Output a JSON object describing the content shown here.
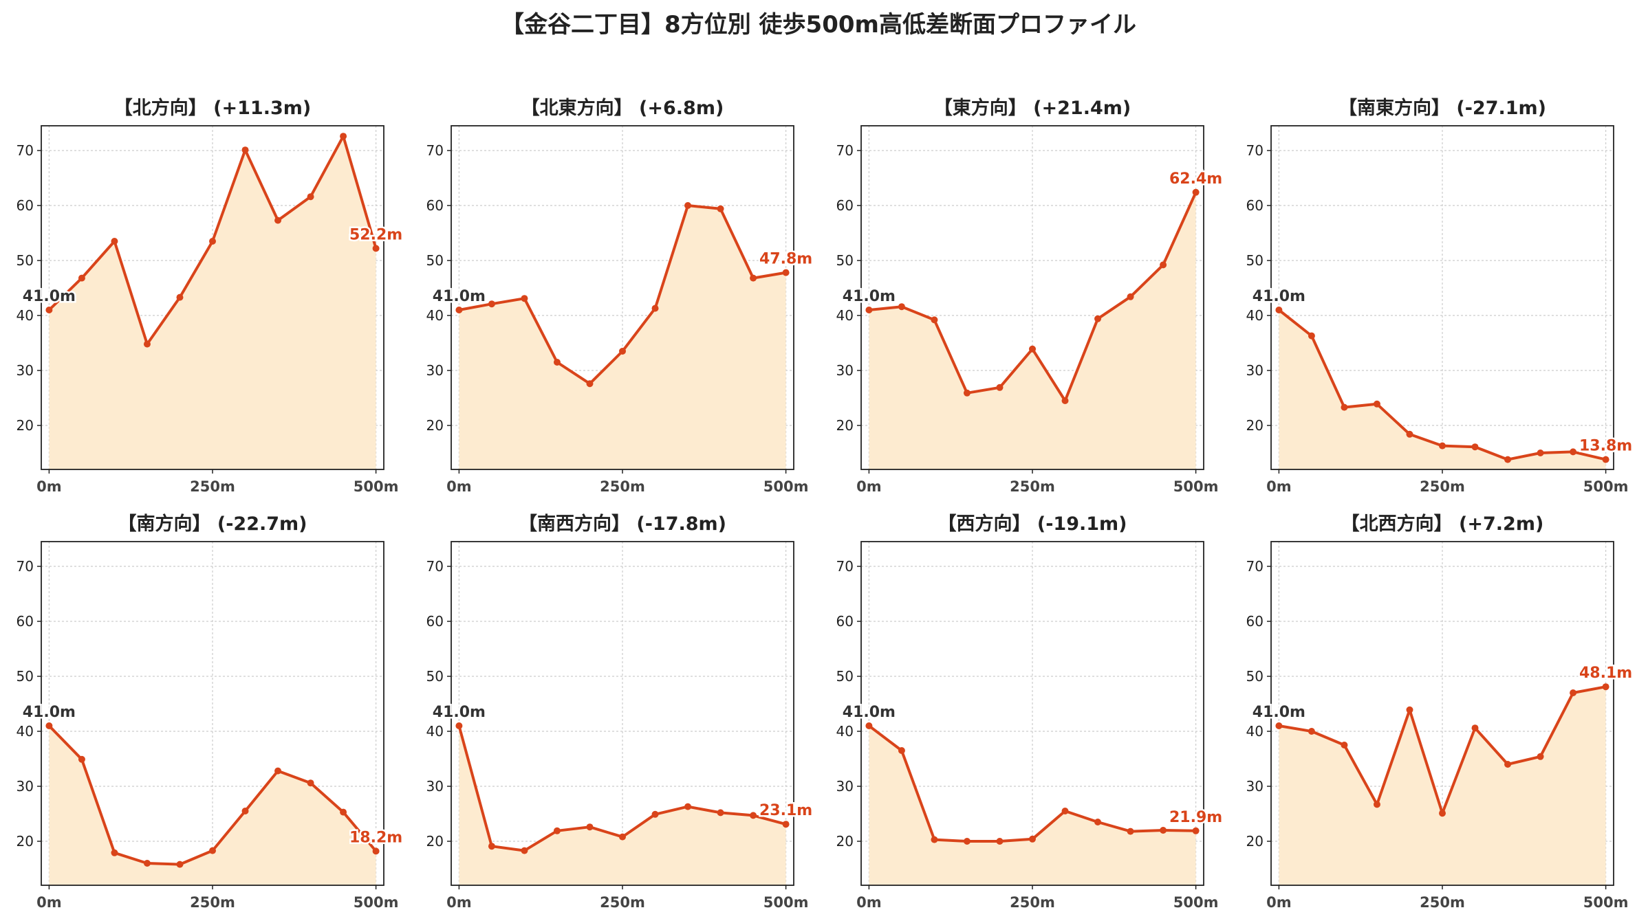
{
  "figure": {
    "title": "【金谷二丁目】8方位別 徒歩500m高低差断面プロファイル"
  },
  "colors": {
    "line": "#d9441a",
    "fill": "#fdebd0",
    "start_label": "#333333",
    "end_label": "#d9441a",
    "grid": "#cccccc",
    "frame": "#222222"
  },
  "chart_data": [
    {
      "type": "area",
      "title": "【北方向】 (+11.3m)",
      "x": [
        0,
        50,
        100,
        150,
        200,
        250,
        300,
        350,
        400,
        450,
        500
      ],
      "values": [
        41.0,
        46.8,
        53.5,
        34.8,
        43.3,
        53.5,
        70.1,
        57.3,
        61.6,
        72.6,
        52.2
      ],
      "xticks": [
        "0m",
        "250m",
        "500m"
      ],
      "yticks": [
        20,
        30,
        40,
        50,
        60,
        70
      ],
      "ylim": [
        12,
        74.5
      ],
      "xlim": [
        -12,
        512
      ],
      "start_label": "41.0m",
      "end_label": "52.2m",
      "grid": true
    },
    {
      "type": "area",
      "title": "【北東方向】 (+6.8m)",
      "x": [
        0,
        50,
        100,
        150,
        200,
        250,
        300,
        350,
        400,
        450,
        500
      ],
      "values": [
        41.0,
        42.1,
        43.1,
        31.5,
        27.6,
        33.5,
        41.3,
        60.0,
        59.4,
        46.8,
        47.8
      ],
      "xticks": [
        "0m",
        "250m",
        "500m"
      ],
      "yticks": [
        20,
        30,
        40,
        50,
        60,
        70
      ],
      "ylim": [
        12,
        74.5
      ],
      "xlim": [
        -12,
        512
      ],
      "start_label": "41.0m",
      "end_label": "47.8m",
      "grid": true
    },
    {
      "type": "area",
      "title": "【東方向】 (+21.4m)",
      "x": [
        0,
        50,
        100,
        150,
        200,
        250,
        300,
        350,
        400,
        450,
        500
      ],
      "values": [
        41.0,
        41.6,
        39.2,
        25.9,
        26.9,
        33.9,
        24.5,
        39.4,
        43.4,
        49.2,
        62.4
      ],
      "xticks": [
        "0m",
        "250m",
        "500m"
      ],
      "yticks": [
        20,
        30,
        40,
        50,
        60,
        70
      ],
      "ylim": [
        12,
        74.5
      ],
      "xlim": [
        -12,
        512
      ],
      "start_label": "41.0m",
      "end_label": "62.4m",
      "grid": true
    },
    {
      "type": "area",
      "title": "【南東方向】 (-27.1m)",
      "x": [
        0,
        50,
        100,
        150,
        200,
        250,
        300,
        350,
        400,
        450,
        500
      ],
      "values": [
        41.0,
        36.3,
        23.3,
        23.9,
        18.4,
        16.3,
        16.1,
        13.8,
        15.0,
        15.2,
        13.8
      ],
      "xticks": [
        "0m",
        "250m",
        "500m"
      ],
      "yticks": [
        20,
        30,
        40,
        50,
        60,
        70
      ],
      "ylim": [
        12,
        74.5
      ],
      "xlim": [
        -12,
        512
      ],
      "start_label": "41.0m",
      "end_label": "13.8m",
      "grid": true
    },
    {
      "type": "area",
      "title": "【南方向】 (-22.7m)",
      "x": [
        0,
        50,
        100,
        150,
        200,
        250,
        300,
        350,
        400,
        450,
        500
      ],
      "values": [
        41.0,
        34.9,
        17.9,
        16.0,
        15.8,
        18.3,
        25.5,
        32.8,
        30.6,
        25.3,
        18.2
      ],
      "xticks": [
        "0m",
        "250m",
        "500m"
      ],
      "yticks": [
        20,
        30,
        40,
        50,
        60,
        70
      ],
      "ylim": [
        12,
        74.5
      ],
      "xlim": [
        -12,
        512
      ],
      "start_label": "41.0m",
      "end_label": "18.2m",
      "grid": true
    },
    {
      "type": "area",
      "title": "【南西方向】 (-17.8m)",
      "x": [
        0,
        50,
        100,
        150,
        200,
        250,
        300,
        350,
        400,
        450,
        500
      ],
      "values": [
        41.0,
        19.1,
        18.3,
        21.9,
        22.6,
        20.8,
        24.9,
        26.3,
        25.2,
        24.7,
        23.1
      ],
      "xticks": [
        "0m",
        "250m",
        "500m"
      ],
      "yticks": [
        20,
        30,
        40,
        50,
        60,
        70
      ],
      "ylim": [
        12,
        74.5
      ],
      "xlim": [
        -12,
        512
      ],
      "start_label": "41.0m",
      "end_label": "23.1m",
      "grid": true
    },
    {
      "type": "area",
      "title": "【西方向】 (-19.1m)",
      "x": [
        0,
        50,
        100,
        150,
        200,
        250,
        300,
        350,
        400,
        450,
        500
      ],
      "values": [
        41.0,
        36.5,
        20.3,
        20.0,
        20.0,
        20.4,
        25.5,
        23.5,
        21.8,
        22.0,
        21.9
      ],
      "xticks": [
        "0m",
        "250m",
        "500m"
      ],
      "yticks": [
        20,
        30,
        40,
        50,
        60,
        70
      ],
      "ylim": [
        12,
        74.5
      ],
      "xlim": [
        -12,
        512
      ],
      "start_label": "41.0m",
      "end_label": "21.9m",
      "grid": true
    },
    {
      "type": "area",
      "title": "【北西方向】 (+7.2m)",
      "x": [
        0,
        50,
        100,
        150,
        200,
        250,
        300,
        350,
        400,
        450,
        500
      ],
      "values": [
        41.0,
        40.0,
        37.5,
        26.7,
        43.9,
        25.1,
        40.6,
        34.0,
        35.4,
        47.0,
        48.1
      ],
      "xticks": [
        "0m",
        "250m",
        "500m"
      ],
      "yticks": [
        20,
        30,
        40,
        50,
        60,
        70
      ],
      "ylim": [
        12,
        74.5
      ],
      "xlim": [
        -12,
        512
      ],
      "start_label": "41.0m",
      "end_label": "48.1m",
      "grid": true
    }
  ]
}
